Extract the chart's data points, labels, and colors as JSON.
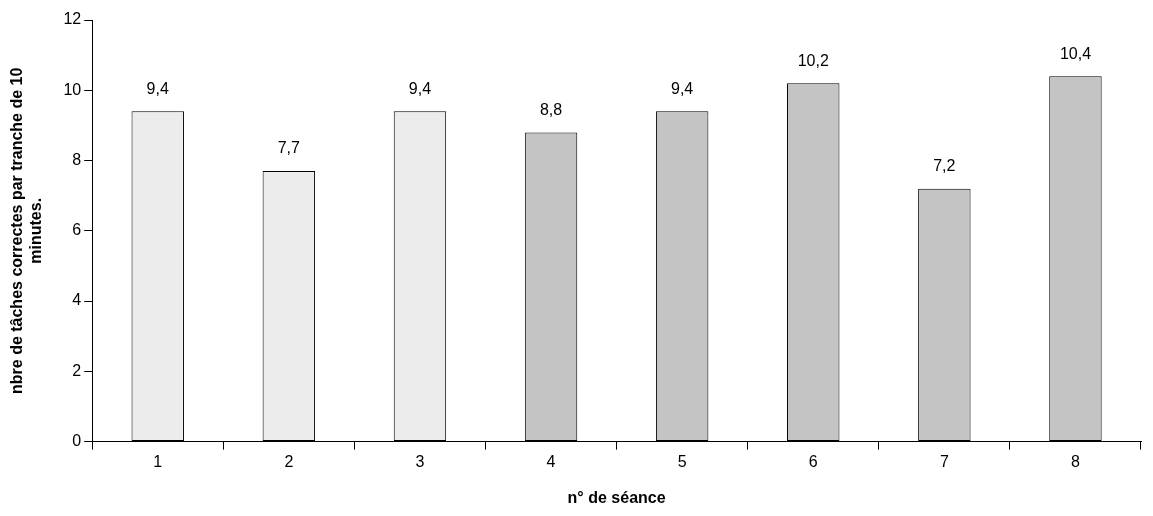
{
  "chart_data": {
    "type": "bar",
    "xlabel": "n° de séance",
    "ylabel": "nbre de tâches correctes par tranche de 10 minutes.",
    "categories": [
      "1",
      "2",
      "3",
      "4",
      "5",
      "6",
      "7",
      "8"
    ],
    "values": [
      9.4,
      7.7,
      9.4,
      8.8,
      9.4,
      10.2,
      7.2,
      10.4
    ],
    "value_labels": [
      "9,4",
      "7,7",
      "9,4",
      "8,8",
      "9,4",
      "10,2",
      "7,2",
      "10,4"
    ],
    "colors": [
      "#ececec",
      "#ececec",
      "#ececec",
      "#c4c4c4",
      "#c4c4c4",
      "#c4c4c4",
      "#c4c4c4",
      "#c4c4c4"
    ],
    "ylim": [
      0,
      12
    ],
    "yticks": [
      0,
      2,
      4,
      6,
      8,
      10,
      12
    ],
    "grid": false,
    "legend": false
  }
}
